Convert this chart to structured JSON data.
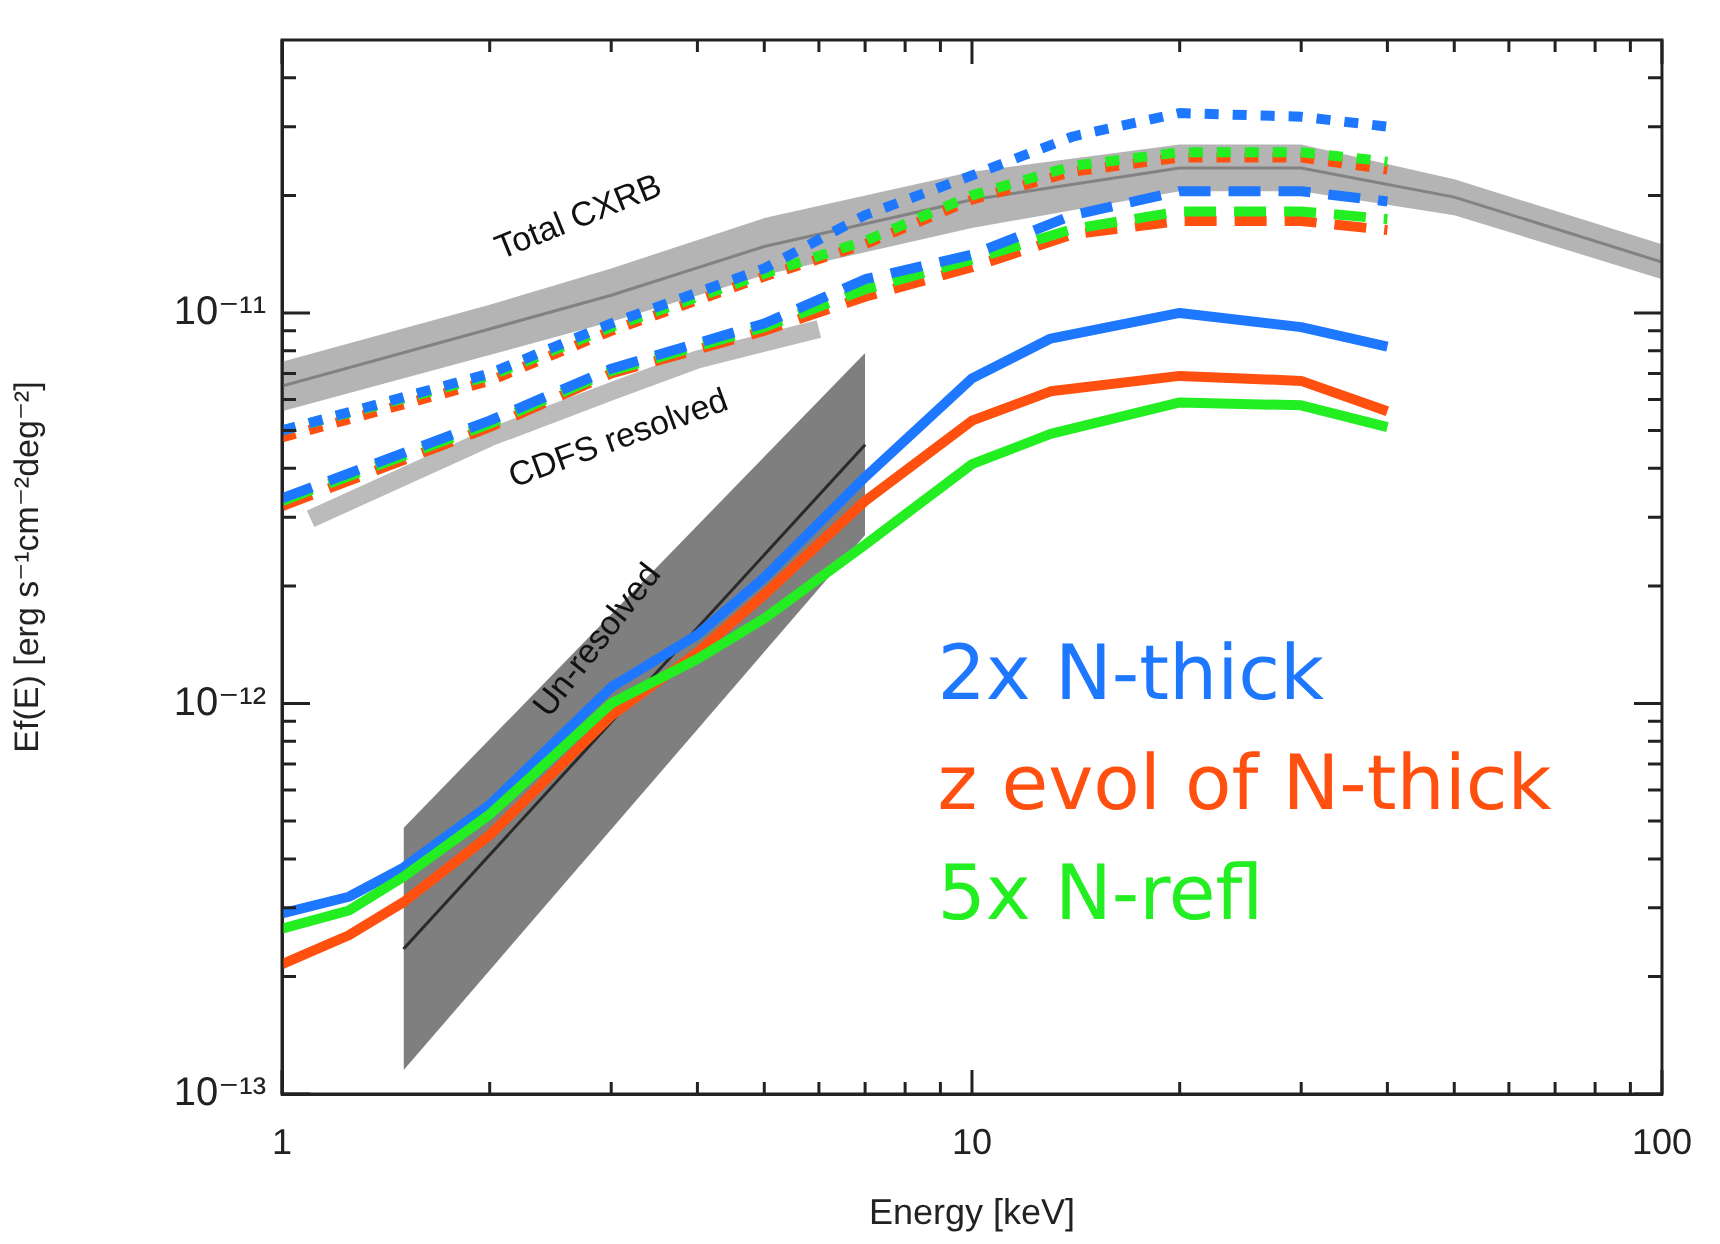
{
  "chart_data": {
    "type": "line",
    "xlabel": "Energy [keV]",
    "ylabel": "Ef(E) [erg s⁻¹cm⁻²deg⁻²]",
    "log": "xy",
    "grid": false,
    "legend": "bottom right",
    "xlim": [
      1,
      100
    ],
    "ylim": [
      1e-13,
      5e-11
    ],
    "xticks": [
      1,
      {
        "value": 2,
        "label": null
      },
      {
        "value": 3,
        "label": null
      },
      {
        "value": 4,
        "label": null
      },
      {
        "value": 5,
        "label": null
      },
      {
        "value": 6,
        "label": null
      },
      {
        "value": 7,
        "label": null
      },
      {
        "value": 8,
        "label": null
      },
      {
        "value": 9,
        "label": null
      },
      10,
      {
        "value": 20,
        "label": null
      },
      {
        "value": 30,
        "label": null
      },
      {
        "value": 40,
        "label": null
      },
      {
        "value": 50,
        "label": null
      },
      {
        "value": 60,
        "label": null
      },
      {
        "value": 70,
        "label": null
      },
      {
        "value": 80,
        "label": null
      },
      {
        "value": 90,
        "label": null
      },
      100
    ],
    "yticks": [
      {
        "value": 1e-13,
        "label": "10⁻¹³"
      },
      {
        "value": 2e-13,
        "label": null
      },
      {
        "value": 3e-13,
        "label": null
      },
      {
        "value": 4e-13,
        "label": null
      },
      {
        "value": 5e-13,
        "label": null
      },
      {
        "value": 6e-13,
        "label": null
      },
      {
        "value": 7e-13,
        "label": null
      },
      {
        "value": 8e-13,
        "label": null
      },
      {
        "value": 9e-13,
        "label": null
      },
      {
        "value": 1e-12,
        "label": "10⁻¹²"
      },
      {
        "value": 2e-12,
        "label": null
      },
      {
        "value": 3e-12,
        "label": null
      },
      {
        "value": 4e-12,
        "label": null
      },
      {
        "value": 5e-12,
        "label": null
      },
      {
        "value": 6e-12,
        "label": null
      },
      {
        "value": 7e-12,
        "label": null
      },
      {
        "value": 8e-12,
        "label": null
      },
      {
        "value": 9e-12,
        "label": null
      },
      {
        "value": 1e-11,
        "label": "10⁻¹¹"
      },
      {
        "value": 2e-11,
        "label": null
      },
      {
        "value": 3e-11,
        "label": null
      },
      {
        "value": 4e-11,
        "label": null
      }
    ],
    "annotations": [
      "Total CXRB",
      "CDFS resolved",
      "Un-resolved"
    ],
    "series": [
      {
        "color": "#828282",
        "x": [
          1,
          2,
          3,
          5,
          10,
          20,
          30,
          50,
          100
        ],
        "values": [
          6.5e-12,
          9.1e-12,
          1.11e-11,
          1.48e-11,
          1.95e-11,
          2.35e-11,
          2.35e-11,
          1.98e-11,
          1.35e-11
        ],
        "lower": [
          5.6e-12,
          7.8e-12,
          9.5e-12,
          1.25e-11,
          1.65e-11,
          2.05e-11,
          2.05e-11,
          1.78e-11,
          1.22e-11
        ],
        "upper": [
          7.5e-12,
          1.05e-11,
          1.3e-11,
          1.75e-11,
          2.3e-11,
          2.7e-11,
          2.7e-11,
          2.2e-11,
          1.5e-11
        ]
      },
      {
        "color": "#bbbbbb",
        "x": [
          1.1,
          2,
          3,
          4,
          6
        ],
        "values": [
          2.97e-12,
          4.8e-12,
          6.3e-12,
          7.6e-12,
          9.1e-12
        ]
      },
      {
        "color": "#2a2a2a",
        "x": [
          1.5,
          7
        ],
        "values": [
          2.35e-13,
          4.6e-12
        ],
        "lower": [
          1.15e-13,
          2.7e-12
        ],
        "upper": [
          4.8e-13,
          7.9e-12
        ]
      },
      {
        "line_style": "dotted",
        "color": "#ff5010",
        "x": [
          1,
          2,
          3,
          5,
          7,
          10,
          14,
          20,
          30,
          40
        ],
        "values": [
          4.8e-12,
          6.7e-12,
          9e-12,
          1.24e-11,
          1.5e-11,
          1.95e-11,
          2.3e-11,
          2.5e-11,
          2.5e-11,
          2.33e-11
        ]
      },
      {
        "line_style": "dotted",
        "color": "#22ee22",
        "x": [
          1,
          2,
          3,
          5,
          7,
          10,
          14,
          20,
          30,
          40
        ],
        "values": [
          5e-12,
          6.9e-12,
          9.2e-12,
          1.26e-11,
          1.53e-11,
          2e-11,
          2.38e-11,
          2.58e-11,
          2.58e-11,
          2.44e-11
        ]
      },
      {
        "line_style": "dotted",
        "color": "#1e78ff",
        "x": [
          1,
          2,
          3,
          5,
          7,
          10,
          14,
          20,
          30,
          40
        ],
        "values": [
          5e-12,
          7e-12,
          9.4e-12,
          1.3e-11,
          1.78e-11,
          2.25e-11,
          2.83e-11,
          3.25e-11,
          3.18e-11,
          3e-11
        ]
      },
      {
        "line_style": "dashed",
        "color": "#ff5010",
        "x": [
          1,
          2,
          3,
          5,
          7,
          10,
          14,
          20,
          30,
          40
        ],
        "values": [
          3.2e-12,
          5.1e-12,
          7e-12,
          9e-12,
          1.1e-11,
          1.31e-11,
          1.59e-11,
          1.72e-11,
          1.72e-11,
          1.63e-11
        ]
      },
      {
        "line_style": "dashed",
        "color": "#22ee22",
        "x": [
          1,
          2,
          3,
          5,
          7,
          10,
          14,
          20,
          30,
          40
        ],
        "values": [
          3.3e-12,
          5.2e-12,
          7.1e-12,
          9.2e-12,
          1.15e-11,
          1.37e-11,
          1.64e-11,
          1.82e-11,
          1.82e-11,
          1.74e-11
        ]
      },
      {
        "line_style": "dashed",
        "color": "#1e78ff",
        "x": [
          1,
          2,
          3,
          5,
          7,
          10,
          14,
          20,
          30,
          40
        ],
        "values": [
          3.35e-12,
          5.3e-12,
          7.2e-12,
          9.4e-12,
          1.22e-11,
          1.41e-11,
          1.78e-11,
          2.05e-11,
          2.05e-11,
          1.93e-11
        ]
      },
      {
        "name": "2x N-thick",
        "line_style": "solid",
        "color": "#1e78ff",
        "x": [
          1,
          1.25,
          1.5,
          2,
          3,
          4,
          5,
          7,
          10,
          13,
          20,
          30,
          40
        ],
        "values": [
          2.9e-13,
          3.2e-13,
          3.8e-13,
          5.5e-13,
          1.1e-12,
          1.5e-12,
          2.1e-12,
          3.8e-12,
          6.8e-12,
          8.6e-12,
          1e-11,
          9.2e-12,
          8.2e-12
        ]
      },
      {
        "name": "z evol of N-thick",
        "line_style": "solid",
        "color": "#ff5010",
        "x": [
          1,
          1.25,
          1.5,
          2,
          3,
          4,
          5,
          7,
          10,
          13,
          20,
          30,
          40
        ],
        "values": [
          2.15e-13,
          2.55e-13,
          3.1e-13,
          4.6e-13,
          9.3e-13,
          1.35e-12,
          1.9e-12,
          3.3e-12,
          5.3e-12,
          6.3e-12,
          6.9e-12,
          6.7e-12,
          5.6e-12
        ]
      },
      {
        "name": "5x N-refl",
        "line_style": "solid",
        "color": "#22ee22",
        "x": [
          1,
          1.25,
          1.5,
          2,
          3,
          4,
          5,
          7,
          10,
          13,
          20,
          30,
          40
        ],
        "values": [
          2.65e-13,
          2.95e-13,
          3.6e-13,
          5.2e-13,
          1e-12,
          1.3e-12,
          1.65e-12,
          2.55e-12,
          4.1e-12,
          4.9e-12,
          5.9e-12,
          5.8e-12,
          5.1e-12
        ]
      }
    ]
  }
}
